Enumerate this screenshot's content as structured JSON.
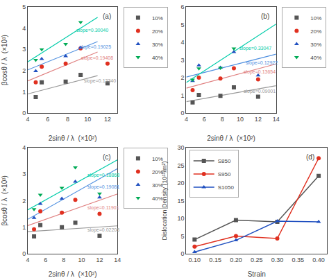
{
  "chart_data": [
    {
      "type": "scatter",
      "title": "(a)",
      "xlabel": "2sinθ / λ  (×10²)",
      "ylabel": "βcosθ / λ  (×10³)",
      "xlim": [
        4,
        13
      ],
      "ylim": [
        0,
        5
      ],
      "xticks": [
        4,
        6,
        8,
        10,
        12
      ],
      "yticks": [
        0,
        1,
        2,
        3,
        4,
        5
      ],
      "grid": false,
      "legend": "right",
      "series": [
        {
          "name": "10%",
          "color": "#555555",
          "marker": "square",
          "x": [
            4.8,
            5.4,
            7.8,
            9.3,
            12.0
          ],
          "values": [
            0.75,
            1.45,
            1.48,
            1.8,
            1.4
          ],
          "fit": {
            "x": [
              4,
              11
            ],
            "values": [
              0.899676,
              1.763476
            ],
            "color": "#999999"
          }
        },
        {
          "name": "20%",
          "color": "#e03020",
          "marker": "circle",
          "x": [
            4.8,
            5.4,
            7.8,
            9.3,
            12.0
          ],
          "values": [
            1.45,
            2.18,
            2.33,
            3.05,
            2.33
          ],
          "fit": {
            "x": [
              4,
              11
            ],
            "values": [
              1.5188512,
              2.8774112
            ],
            "color": "#e08080"
          }
        },
        {
          "name": "30%",
          "color": "#2050c0",
          "marker": "triangle-up",
          "x": [
            4.8,
            5.4,
            7.8,
            9.3
          ],
          "values": [
            1.98,
            2.55,
            2.68,
            3.08
          ],
          "fit": {
            "x": [
              4,
              11
            ],
            "values": [
              2.03504375,
              3.36679375
            ],
            "color": "#5090e0"
          }
        },
        {
          "name": "40%",
          "color": "#00aa55",
          "marker": "triangle-down",
          "x": [
            4.8,
            5.4,
            7.8,
            9.3
          ],
          "values": [
            2.5,
            3.0,
            3.25,
            4.28
          ],
          "fit": {
            "x": [
              4,
              11
            ],
            "values": [
              2.40887,
              4.51167
            ],
            "color": "#00ccaa"
          }
        }
      ],
      "annotations": [
        {
          "text": "slope=0.12340",
          "x": 9.5,
          "y": 1.5,
          "color": "#999999"
        },
        {
          "text": "slope=0.19408",
          "x": 9.2,
          "y": 2.58,
          "color": "#e08080"
        },
        {
          "text": "slope=0.19025",
          "x": 9.0,
          "y": 3.1,
          "color": "#5090e0"
        },
        {
          "text": "slope=0.30040",
          "x": 8.7,
          "y": 3.9,
          "color": "#00ccaa"
        }
      ]
    },
    {
      "type": "scatter",
      "title": "(b)",
      "xlabel": "2sinθ / λ  (×10²)",
      "xlim": [
        4,
        14
      ],
      "ylim": [
        0,
        6
      ],
      "xticks": [
        4,
        6,
        8,
        10,
        12,
        14
      ],
      "yticks": [
        0,
        1,
        2,
        3,
        4,
        5,
        6
      ],
      "grid": false,
      "legend": "right",
      "series": [
        {
          "name": "10%",
          "color": "#555555",
          "marker": "square",
          "x": [
            4.7,
            5.4,
            7.8,
            9.3,
            12.0
          ],
          "values": [
            0.6,
            1.02,
            0.97,
            1.45,
            0.92
          ],
          "fit": {
            "x": [
              4,
              14
            ],
            "values": [
              0.6463616,
              1.5464616
            ],
            "color": "#999999"
          }
        },
        {
          "name": "20%",
          "color": "#e03020",
          "marker": "circle",
          "x": [
            4.7,
            5.4,
            7.8,
            9.3,
            12.0
          ],
          "values": [
            1.3,
            2.0,
            1.95,
            2.53,
            1.9
          ],
          "fit": {
            "x": [
              4,
              14
            ],
            "values": [
              1.4116864,
              2.7770864
            ],
            "color": "#e08080"
          }
        },
        {
          "name": "30%",
          "color": "#2050c0",
          "marker": "triangle-up",
          "x": [
            4.7,
            5.4,
            7.8,
            9.3,
            12.0
          ],
          "values": [
            1.82,
            2.7,
            2.57,
            3.45,
            2.13
          ],
          "fit": {
            "x": [
              4,
              14
            ],
            "values": [
              2.0377952,
              3.3299952
            ],
            "color": "#5090e0"
          }
        },
        {
          "name": "40%",
          "color": "#00aa55",
          "marker": "triangle-down",
          "x": [
            4.7,
            5.4,
            7.8,
            9.3
          ],
          "values": [
            1.88,
            2.52,
            2.55,
            3.65
          ],
          "fit": {
            "x": [
              4,
              14
            ],
            "values": [
              1.724684,
              5.029384
            ],
            "color": "#00ccaa"
          }
        }
      ],
      "annotations": [
        {
          "text": "slope=0.09001",
          "x": 10.2,
          "y": 1.2,
          "color": "#999999"
        },
        {
          "text": "slope=0.13654",
          "x": 10.2,
          "y": 2.3,
          "color": "#e08080"
        },
        {
          "text": "slope=0.12922",
          "x": 10.5,
          "y": 2.82,
          "color": "#5090e0"
        },
        {
          "text": "slope=0.33047",
          "x": 9.8,
          "y": 3.65,
          "color": "#00ccaa"
        }
      ]
    },
    {
      "type": "scatter",
      "title": "(c)",
      "xlabel": "2sinθ / λ  (×10²)",
      "ylabel": "βcosθ / λ  (×10³)",
      "xlim": [
        4,
        14
      ],
      "ylim": [
        0,
        4
      ],
      "xticks": [
        4,
        6,
        8,
        10,
        12,
        14
      ],
      "yticks": [
        0,
        1,
        2,
        3,
        4
      ],
      "grid": false,
      "legend": "right",
      "series": [
        {
          "name": "10%",
          "color": "#555555",
          "marker": "square",
          "x": [
            4.7,
            5.4,
            7.8,
            9.3,
            12.0
          ],
          "values": [
            0.65,
            1.08,
            1.0,
            1.17,
            0.68
          ],
          "fit": {
            "x": [
              4,
              14
            ],
            "values": [
              0.8312128,
              1.0520128
            ],
            "color": "#999999"
          }
        },
        {
          "name": "20%",
          "color": "#e03020",
          "marker": "circle",
          "x": [
            4.7,
            5.4,
            7.8,
            9.3,
            12.0
          ],
          "values": [
            0.92,
            1.6,
            1.55,
            2.03,
            1.5
          ],
          "fit": {
            "x": [
              4,
              14
            ],
            "values": [
              1.0630016,
              2.2531016
            ],
            "color": "#e08080"
          }
        },
        {
          "name": "30%",
          "color": "#2050c0",
          "marker": "triangle-up",
          "x": [
            4.7,
            5.4,
            7.8,
            9.3,
            12.0
          ],
          "values": [
            1.35,
            1.88,
            2.08,
            2.72,
            2.12
          ],
          "fit": {
            "x": [
              4,
              14
            ],
            "values": [
              1.2972896,
              3.2053896
            ],
            "color": "#5090e0"
          }
        },
        {
          "name": "40%",
          "color": "#00aa55",
          "marker": "triangle-down",
          "x": [
            4.7,
            5.4,
            7.8,
            9.3,
            12.0
          ],
          "values": [
            1.68,
            2.22,
            2.48,
            3.25,
            2.27
          ],
          "fit": {
            "x": [
              4,
              14
            ],
            "values": [
              1.6554688,
              3.5422688
            ],
            "color": "#00ccaa"
          }
        }
      ],
      "annotations": [
        {
          "text": "slope=0.02208",
          "x": 10.5,
          "y": 0.9,
          "color": "#999999"
        },
        {
          "text": "slope=0.11901",
          "x": 10.5,
          "y": 1.72,
          "color": "#e08080"
        },
        {
          "text": "slope=0.19081",
          "x": 10.5,
          "y": 2.52,
          "color": "#5090e0"
        },
        {
          "text": "slope=0.18868",
          "x": 10.5,
          "y": 2.95,
          "color": "#00ccaa"
        }
      ]
    },
    {
      "type": "line",
      "title": "(d)",
      "xlabel": "Strain",
      "ylabel": "Dislocation Density (10¹³/m²)",
      "xlim": [
        0.08,
        0.42
      ],
      "ylim": [
        0,
        30
      ],
      "xticks": [
        {
          "value": 0.1,
          "label": "0.10"
        },
        0.15,
        {
          "value": 0.2,
          "label": "0.20"
        },
        0.25,
        {
          "value": 0.3,
          "label": "0.30"
        },
        0.35,
        {
          "value": 0.4,
          "label": "0.40"
        }
      ],
      "yticks": [
        0,
        5,
        10,
        15,
        20,
        25,
        30
      ],
      "grid": false,
      "legend": "upper left",
      "series": [
        {
          "name": "S850",
          "color": "#555555",
          "marker": "square",
          "x": [
            0.1,
            0.2,
            0.3,
            0.4
          ],
          "values": [
            4.0,
            9.5,
            9.0,
            22.0
          ]
        },
        {
          "name": "S950",
          "color": "#e03020",
          "marker": "circle",
          "x": [
            0.1,
            0.2,
            0.3,
            0.4
          ],
          "values": [
            2.0,
            5.0,
            4.3,
            27.0
          ]
        },
        {
          "name": "S1050",
          "color": "#2050c0",
          "marker": "triangle-up",
          "x": [
            0.1,
            0.2,
            0.3,
            0.4
          ],
          "values": [
            0.5,
            3.8,
            9.2,
            9.0
          ]
        }
      ]
    }
  ]
}
